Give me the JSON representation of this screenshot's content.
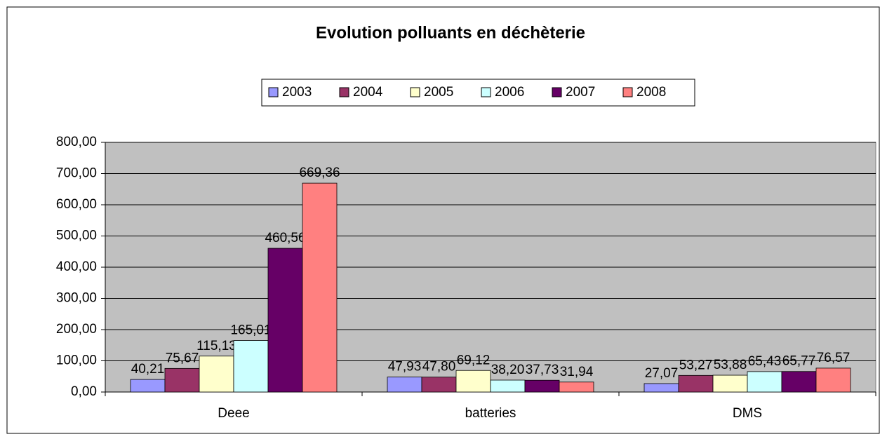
{
  "chart_data": {
    "type": "bar",
    "title": "Evolution polluants en déchèterie",
    "categories": [
      "Deee",
      "batteries",
      "DMS"
    ],
    "series": [
      {
        "name": "2003",
        "color": "#9999FF",
        "values": [
          40.21,
          47.93,
          27.07
        ],
        "value_labels": [
          "40,21",
          "47,93",
          "27,07"
        ]
      },
      {
        "name": "2004",
        "color": "#993366",
        "values": [
          75.67,
          47.8,
          53.27
        ],
        "value_labels": [
          "75,67",
          "47,80",
          "53,27"
        ]
      },
      {
        "name": "2005",
        "color": "#FFFFCC",
        "values": [
          115.13,
          69.12,
          53.88
        ],
        "value_labels": [
          "115,13",
          "69,12",
          "53,88"
        ]
      },
      {
        "name": "2006",
        "color": "#CCFFFF",
        "values": [
          165.01,
          38.2,
          65.43
        ],
        "value_labels": [
          "165,01",
          "38,20",
          "65,43"
        ]
      },
      {
        "name": "2007",
        "color": "#660066",
        "values": [
          460.56,
          37.73,
          65.77
        ],
        "value_labels": [
          "460,56",
          "37,73",
          "65,77"
        ]
      },
      {
        "name": "2008",
        "color": "#FF8080",
        "values": [
          669.36,
          31.94,
          76.57
        ],
        "value_labels": [
          "669,36",
          "31,94",
          "76,57"
        ]
      }
    ],
    "ylim": [
      0,
      800
    ],
    "yticks": [
      {
        "value": 0,
        "label": "0,00"
      },
      {
        "value": 100,
        "label": "100,00"
      },
      {
        "value": 200,
        "label": "200,00"
      },
      {
        "value": 300,
        "label": "300,00"
      },
      {
        "value": 400,
        "label": "400,00"
      },
      {
        "value": 500,
        "label": "500,00"
      },
      {
        "value": 600,
        "label": "600,00"
      },
      {
        "value": 700,
        "label": "700,00"
      },
      {
        "value": 800,
        "label": "800,00"
      }
    ],
    "grid": true,
    "legend": "top"
  }
}
